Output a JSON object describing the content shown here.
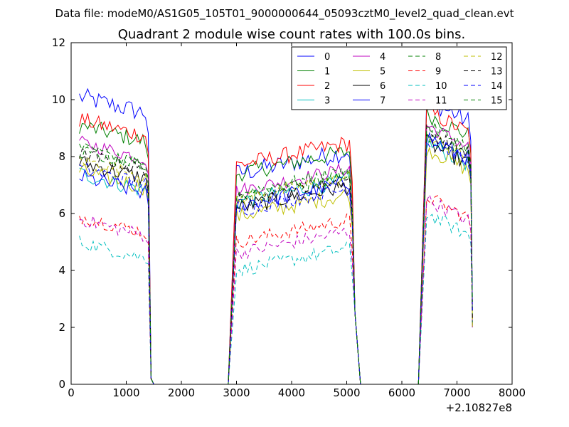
{
  "chart_data": {
    "type": "line",
    "suptitle": "Data file: modeM0/AS1G05_105T01_9000000644_05093cztM0_level2_quad_clean.evt",
    "title": "Quadrant 2 module wise count rates with 100.0s bins.",
    "xlabel": "",
    "ylabel": "",
    "x_offset_label": "+2.10827e8",
    "xlim": [
      0,
      8000
    ],
    "ylim": [
      0,
      12
    ],
    "xticks": [
      0,
      1000,
      2000,
      3000,
      4000,
      5000,
      6000,
      7000,
      8000
    ],
    "yticks": [
      0,
      2,
      4,
      6,
      8,
      10,
      12
    ],
    "grid": false,
    "legend": {
      "placement": "top-right",
      "columns": 4
    },
    "segments": [
      {
        "x_start": 150,
        "x_end": 1400,
        "step": 50
      },
      {
        "x_start": 3000,
        "x_end": 5100,
        "step": 50
      },
      {
        "x_start": 6450,
        "x_end": 7250,
        "step": 50
      }
    ],
    "gap_points": [
      1450,
      1500,
      2850,
      2900,
      5150,
      5200,
      5250,
      6250,
      6300,
      6350
    ],
    "series": [
      {
        "name": "0",
        "color": "#0000ff",
        "dash": "solid",
        "levels": [
          9.8,
          7.6,
          9.5
        ],
        "noise": 0.35
      },
      {
        "name": "1",
        "color": "#008000",
        "dash": "solid",
        "levels": [
          8.8,
          7.6,
          9.0
        ],
        "noise": 0.3
      },
      {
        "name": "2",
        "color": "#ff0000",
        "dash": "solid",
        "levels": [
          9.0,
          7.9,
          9.1
        ],
        "noise": 0.3
      },
      {
        "name": "3",
        "color": "#00bfbf",
        "dash": "solid",
        "levels": [
          7.1,
          6.6,
          8.0
        ],
        "noise": 0.3
      },
      {
        "name": "4",
        "color": "#bf00bf",
        "dash": "solid",
        "levels": [
          8.2,
          7.0,
          8.6
        ],
        "noise": 0.25
      },
      {
        "name": "5",
        "color": "#bfbf00",
        "dash": "solid",
        "levels": [
          7.2,
          6.1,
          7.8
        ],
        "noise": 0.3
      },
      {
        "name": "6",
        "color": "#000000",
        "dash": "solid",
        "levels": [
          7.5,
          6.4,
          8.0
        ],
        "noise": 0.3
      },
      {
        "name": "7",
        "color": "#0000ff",
        "dash": "solid",
        "levels": [
          7.0,
          6.5,
          8.2
        ],
        "noise": 0.3
      },
      {
        "name": "8",
        "color": "#008000",
        "dash": "dashed",
        "levels": [
          8.0,
          6.8,
          8.3
        ],
        "noise": 0.25
      },
      {
        "name": "9",
        "color": "#ff0000",
        "dash": "dashed",
        "levels": [
          5.6,
          5.2,
          6.1
        ],
        "noise": 0.25
      },
      {
        "name": "10",
        "color": "#00bfbf",
        "dash": "dashed",
        "levels": [
          4.7,
          4.2,
          5.5
        ],
        "noise": 0.25
      },
      {
        "name": "11",
        "color": "#bf00bf",
        "dash": "dashed",
        "levels": [
          5.5,
          4.8,
          6.0
        ],
        "noise": 0.25
      },
      {
        "name": "12",
        "color": "#bfbf00",
        "dash": "dashed",
        "levels": [
          7.6,
          6.7,
          8.2
        ],
        "noise": 0.25
      },
      {
        "name": "13",
        "color": "#000000",
        "dash": "dashed",
        "levels": [
          7.8,
          6.6,
          8.4
        ],
        "noise": 0.25
      },
      {
        "name": "14",
        "color": "#0000ff",
        "dash": "dashed",
        "levels": [
          7.3,
          6.3,
          8.1
        ],
        "noise": 0.25
      },
      {
        "name": "15",
        "color": "#008000",
        "dash": "dashed",
        "levels": [
          7.9,
          6.9,
          8.6
        ],
        "noise": 0.25
      }
    ]
  }
}
